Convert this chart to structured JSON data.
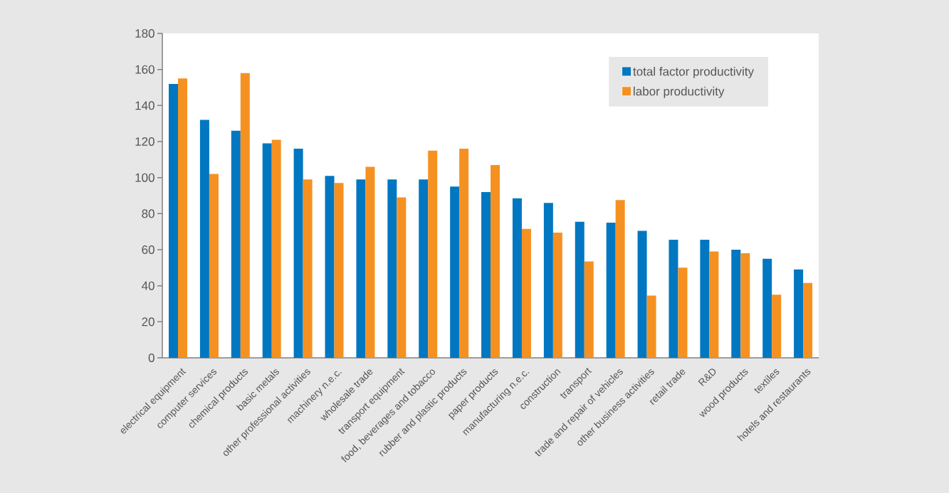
{
  "chart_data": {
    "type": "bar",
    "categories": [
      "electrical equipment",
      "computer services",
      "chemical products",
      "basic metals",
      "other professional activities",
      "machinery n.e.c.",
      "wholesale trade",
      "transport equipment",
      "food, beverages and tobacco",
      "rubber and plastic products",
      "paper products",
      "manufacturing n.e.c.",
      "construction",
      "transport",
      "trade and repair of vehicles",
      "other business activities",
      "retail trade",
      "R&D",
      "wood products",
      "textiles",
      "hotels and restaurants"
    ],
    "series": [
      {
        "name": "total factor productivity",
        "color": "#0077c0",
        "values": [
          152,
          132,
          126,
          119,
          116,
          101,
          99,
          99,
          99,
          95,
          92,
          88.5,
          86,
          75.5,
          75,
          70.5,
          65.5,
          65.5,
          60,
          55,
          49
        ]
      },
      {
        "name": "labor productivity",
        "color": "#f59121",
        "values": [
          155,
          102,
          158,
          121,
          99,
          97,
          106,
          89,
          115,
          116,
          107,
          71.5,
          69.5,
          53.5,
          87.5,
          34.5,
          50,
          59,
          58,
          35,
          41.5
        ]
      }
    ],
    "ylim": [
      0,
      180
    ],
    "yticks": [
      0,
      20,
      40,
      60,
      80,
      100,
      120,
      140,
      160,
      180
    ],
    "legend": "top right"
  }
}
